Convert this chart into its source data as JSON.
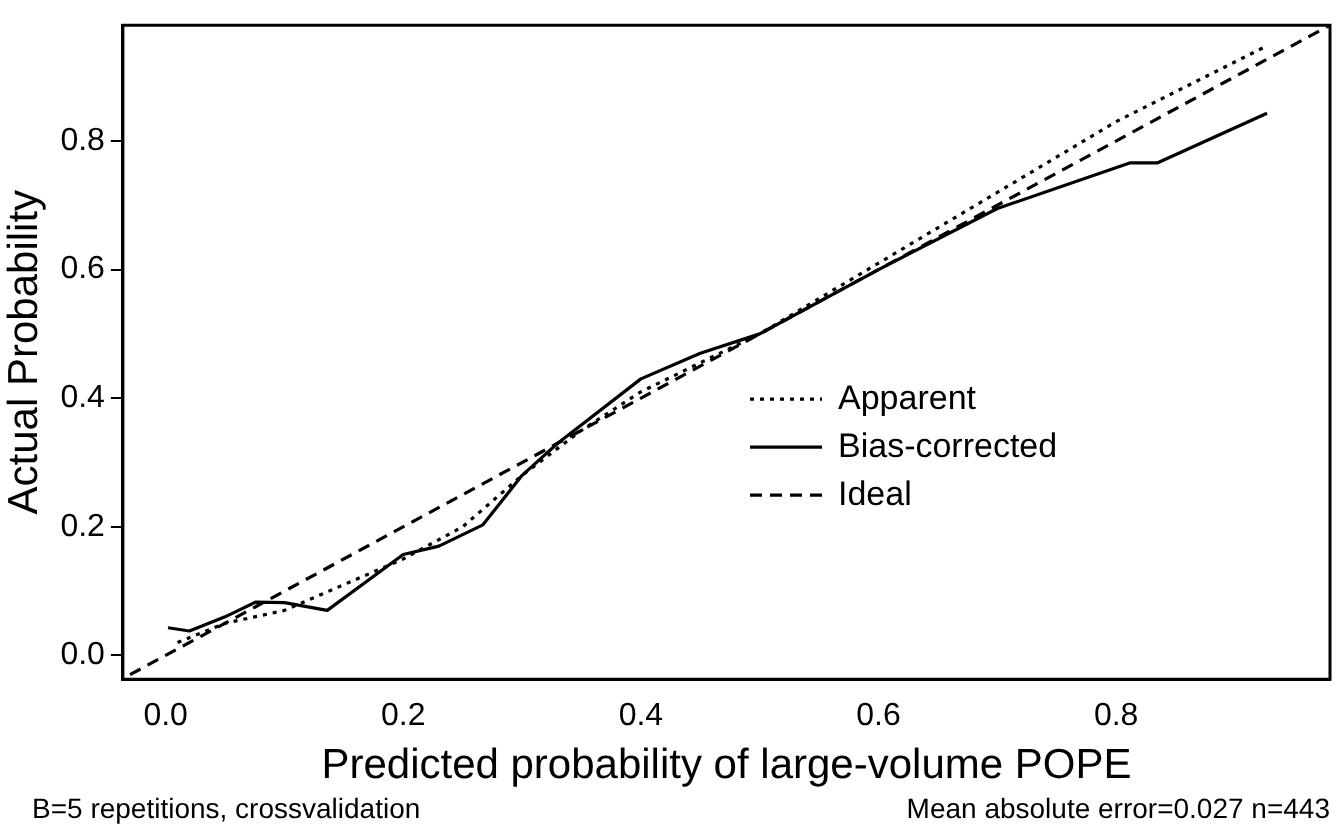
{
  "chart_data": {
    "type": "line",
    "xlabel": "Predicted probability of large-volume POPE",
    "ylabel": "Actual Probability",
    "xlim": [
      -0.036,
      0.98
    ],
    "ylim": [
      -0.037,
      0.98
    ],
    "xticks": [
      {
        "value": 0,
        "label": "0.0"
      },
      0.2,
      0.4,
      0.6,
      0.8
    ],
    "yticks": [
      {
        "value": 0,
        "label": "0.0"
      },
      0.2,
      0.4,
      0.6,
      0.8
    ],
    "grid": false,
    "legend": "bottom right",
    "marker": "none",
    "annotations": [
      "B=5 repetitions, crossvalidation",
      "Mean absolute error=0.027 n=443"
    ],
    "series": [
      {
        "name": "Apparent",
        "color": "#000000",
        "line_style": "dotted",
        "x": [
          0.01,
          0.05,
          0.1,
          0.15,
          0.2,
          0.25,
          0.3,
          0.35,
          0.4,
          0.5,
          0.6,
          0.7,
          0.8,
          0.927
        ],
        "values": [
          0.02,
          0.05,
          0.07,
          0.11,
          0.15,
          0.2,
          0.28,
          0.35,
          0.41,
          0.5,
          0.61,
          0.72,
          0.83,
          0.948
        ]
      },
      {
        "name": "Bias-corrected",
        "color": "#000000",
        "line_style": "solid",
        "x": [
          0.002,
          0.02,
          0.05,
          0.076,
          0.1,
          0.136,
          0.2,
          0.23,
          0.267,
          0.3,
          0.33,
          0.4,
          0.45,
          0.5,
          0.6,
          0.7,
          0.812,
          0.835,
          0.927
        ],
        "values": [
          0.043,
          0.038,
          0.06,
          0.083,
          0.082,
          0.07,
          0.157,
          0.17,
          0.203,
          0.28,
          0.33,
          0.43,
          0.47,
          0.5,
          0.6,
          0.695,
          0.766,
          0.766,
          0.843
        ]
      },
      {
        "name": "Ideal",
        "color": "#000000",
        "line_style": "dashed",
        "x": [
          -0.03,
          0.98
        ],
        "values": [
          -0.03,
          0.98
        ]
      }
    ]
  }
}
